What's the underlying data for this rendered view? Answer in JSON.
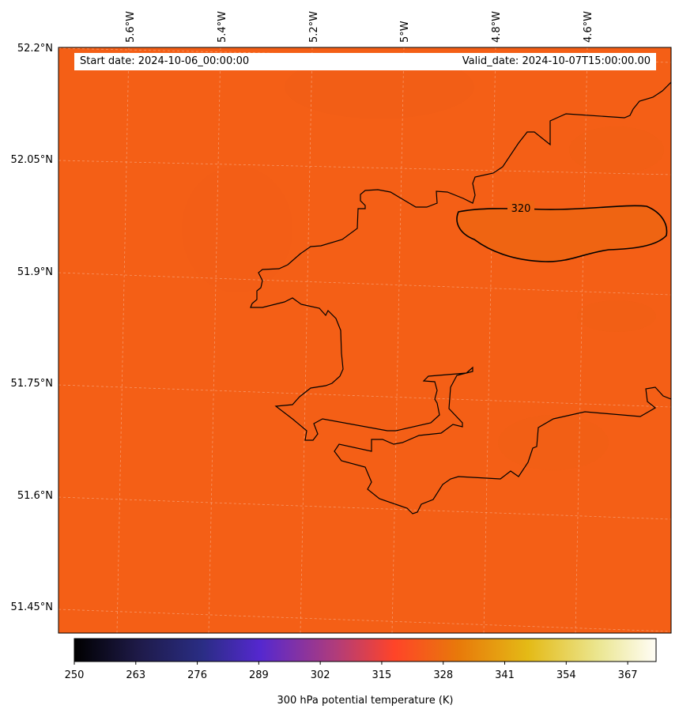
{
  "header": {
    "start_date": "Start date: 2024-10-06_00:00:00",
    "valid_date": "Valid_date: 2024-10-07T15:00:00.00"
  },
  "map": {
    "field_color": "#f45f16",
    "warm_patch_color": "#ef6414",
    "coast_color": "#000000",
    "lon_labels": [
      "5.6°W",
      "5.4°W",
      "5.2°W",
      "5°W",
      "4.8°W",
      "4.6°W"
    ],
    "lat_labels": [
      "52.2°N",
      "52.05°N",
      "51.9°N",
      "51.75°N",
      "51.6°N",
      "51.45°N"
    ],
    "contour_label": "320"
  },
  "colorbar": {
    "title": "300 hPa potential temperature (K)",
    "min": 250,
    "max": 373,
    "ticks": [
      "250",
      "263",
      "276",
      "289",
      "302",
      "315",
      "328",
      "341",
      "354",
      "367"
    ],
    "colors": [
      "#000000",
      "#1e1a48",
      "#2a2d84",
      "#5528cf",
      "#b13c7a",
      "#ff4428",
      "#e8790a",
      "#e4ba16",
      "#ebe690",
      "#fffdf6"
    ]
  }
}
